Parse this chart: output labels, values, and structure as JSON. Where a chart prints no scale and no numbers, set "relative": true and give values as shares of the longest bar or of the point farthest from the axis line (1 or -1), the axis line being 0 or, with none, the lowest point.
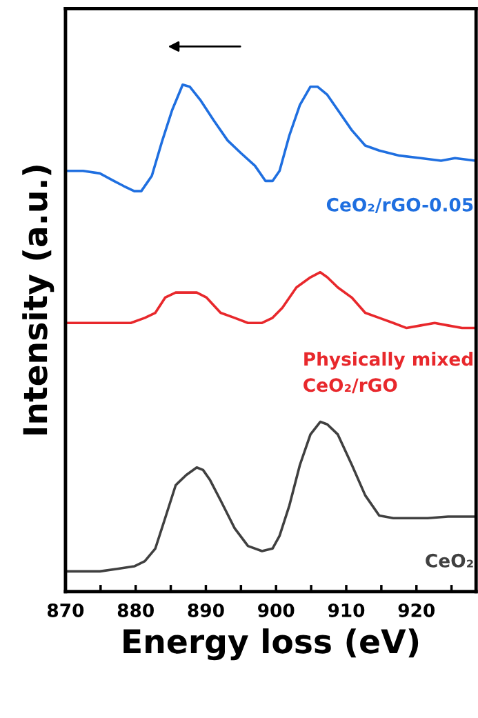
{
  "chart_data": {
    "type": "line",
    "relative": true,
    "xlabel": "Energy loss (eV)",
    "ylabel": "Intensity (a.u.)",
    "xlim": [
      870,
      928.5
    ],
    "xticks": [
      870,
      {
        "value": 875,
        "label": null
      },
      880,
      {
        "value": 885,
        "label": null
      },
      890,
      {
        "value": 895,
        "label": null
      },
      900,
      {
        "value": 905,
        "label": null
      },
      910,
      {
        "value": 915,
        "label": null
      },
      920,
      {
        "value": 925,
        "label": null
      }
    ],
    "tick_labels": "x",
    "grid": false,
    "legend": false,
    "marker": "none",
    "line_style": "solid",
    "series": [
      {
        "name": "CeO₂/rGO-0.05",
        "color": "#1f6fe0",
        "x": [
          870.0,
          872.5,
          874.9,
          876.9,
          878.3,
          879.8,
          880.8,
          882.3,
          883.8,
          885.2,
          886.7,
          887.7,
          889.2,
          891.1,
          893.1,
          895.0,
          897.0,
          898.5,
          899.5,
          900.5,
          901.9,
          903.4,
          904.9,
          905.9,
          907.3,
          908.8,
          910.8,
          912.7,
          914.7,
          917.6,
          920.6,
          923.5,
          925.5,
          928.4
        ],
        "values": [
          0.83,
          0.83,
          0.825,
          0.81,
          0.8,
          0.79,
          0.79,
          0.82,
          0.89,
          0.95,
          1.0,
          0.996,
          0.97,
          0.93,
          0.89,
          0.865,
          0.84,
          0.81,
          0.81,
          0.83,
          0.9,
          0.96,
          0.996,
          0.996,
          0.98,
          0.95,
          0.91,
          0.88,
          0.87,
          0.86,
          0.855,
          0.85,
          0.855,
          0.85
        ]
      },
      {
        "name": "Physically mixed\nCeO₂/rGO",
        "color": "#e8282c",
        "x": [
          870.0,
          872.5,
          874.9,
          877.4,
          879.3,
          881.3,
          882.8,
          884.2,
          885.7,
          887.2,
          888.7,
          890.1,
          892.1,
          894.1,
          896.0,
          898.0,
          899.5,
          900.9,
          902.9,
          904.9,
          906.3,
          907.3,
          908.8,
          910.8,
          912.7,
          914.7,
          916.7,
          918.6,
          920.6,
          922.6,
          924.5,
          926.5,
          928.4
        ],
        "values": [
          0.53,
          0.53,
          0.53,
          0.53,
          0.53,
          0.54,
          0.55,
          0.58,
          0.59,
          0.59,
          0.59,
          0.58,
          0.55,
          0.54,
          0.53,
          0.53,
          0.54,
          0.56,
          0.6,
          0.62,
          0.63,
          0.62,
          0.6,
          0.58,
          0.55,
          0.54,
          0.53,
          0.52,
          0.525,
          0.53,
          0.525,
          0.52,
          0.52
        ]
      },
      {
        "name": "CeO₂",
        "color": "#404040",
        "x": [
          870.0,
          872.5,
          874.9,
          877.4,
          879.8,
          881.3,
          882.8,
          884.2,
          885.7,
          887.2,
          888.7,
          889.6,
          890.6,
          892.1,
          894.1,
          896.0,
          898.0,
          899.5,
          900.5,
          901.9,
          903.4,
          904.9,
          906.3,
          907.3,
          908.8,
          910.8,
          912.7,
          914.7,
          916.7,
          919.6,
          921.6,
          924.5,
          928.4
        ],
        "values": [
          0.04,
          0.04,
          0.04,
          0.045,
          0.05,
          0.06,
          0.085,
          0.145,
          0.21,
          0.23,
          0.245,
          0.24,
          0.22,
          0.18,
          0.125,
          0.09,
          0.08,
          0.085,
          0.11,
          0.17,
          0.25,
          0.31,
          0.335,
          0.33,
          0.31,
          0.25,
          0.19,
          0.15,
          0.145,
          0.145,
          0.145,
          0.148,
          0.148
        ]
      }
    ]
  }
}
